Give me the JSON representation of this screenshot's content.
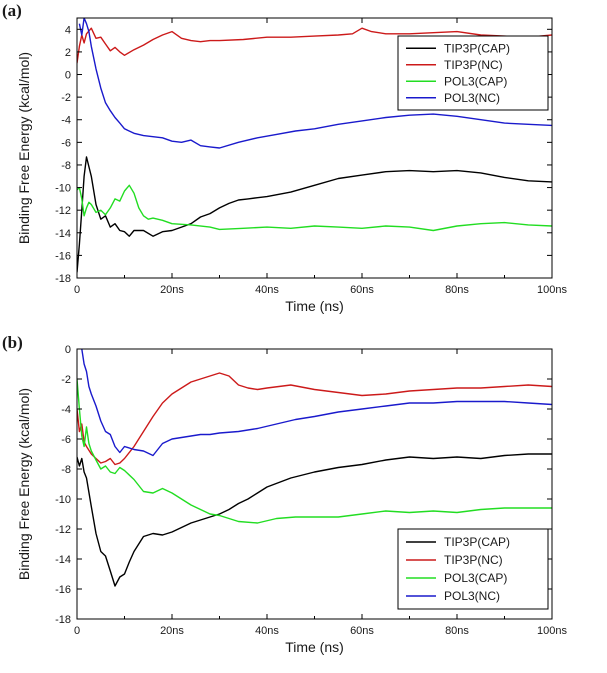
{
  "chart_data": [
    {
      "panel_label": "(a)",
      "type": "line",
      "xlabel": "Time (ns)",
      "ylabel": "Binding Free Energy (kcal/mol)",
      "xlim": [
        0,
        100
      ],
      "ylim": [
        -18,
        5
      ],
      "x_ticks": [
        {
          "value": 0,
          "label": "0"
        },
        {
          "value": 20,
          "label": "20ns"
        },
        {
          "value": 40,
          "label": "40ns"
        },
        {
          "value": 60,
          "label": "60ns"
        },
        {
          "value": 80,
          "label": "80ns"
        },
        {
          "value": 100,
          "label": "100ns"
        }
      ],
      "y_ticks": [
        4,
        2,
        0,
        -2,
        -4,
        -6,
        -8,
        -10,
        -12,
        -14,
        -16,
        -18
      ],
      "legend_position": "top-right",
      "series": [
        {
          "name": "TIP3P(CAP)",
          "color": "#000000",
          "x": [
            0,
            0.5,
            1,
            1.5,
            2,
            3,
            4,
            5,
            6,
            7,
            8,
            9,
            10,
            11,
            12,
            14,
            16,
            18,
            20,
            22,
            24,
            26,
            28,
            30,
            32,
            34,
            36,
            38,
            40,
            45,
            50,
            55,
            60,
            65,
            70,
            75,
            80,
            85,
            90,
            95,
            100
          ],
          "y": [
            -17.5,
            -15,
            -12,
            -9,
            -7.3,
            -9,
            -11.5,
            -12.8,
            -12.5,
            -13.5,
            -13.2,
            -13.8,
            -13.9,
            -14.3,
            -13.8,
            -13.8,
            -14.3,
            -13.9,
            -13.8,
            -13.5,
            -13.2,
            -12.6,
            -12.3,
            -11.8,
            -11.4,
            -11.1,
            -11,
            -10.9,
            -10.8,
            -10.4,
            -9.8,
            -9.2,
            -8.9,
            -8.6,
            -8.5,
            -8.6,
            -8.5,
            -8.7,
            -9.1,
            -9.4,
            -9.5
          ]
        },
        {
          "name": "TIP3P(NC)",
          "color": "#cc1a1a",
          "x": [
            0,
            0.5,
            1,
            1.5,
            2,
            3,
            4,
            5,
            6,
            7,
            8,
            9,
            10,
            12,
            14,
            16,
            18,
            20,
            22,
            24,
            26,
            28,
            30,
            35,
            40,
            45,
            50,
            55,
            58,
            60,
            62,
            65,
            70,
            75,
            80,
            85,
            90,
            95,
            100
          ],
          "y": [
            1,
            2.5,
            3.5,
            2.8,
            3.6,
            4.1,
            3.2,
            3.3,
            2.7,
            2.1,
            2.4,
            2.0,
            1.7,
            2.2,
            2.6,
            3.1,
            3.5,
            3.8,
            3.2,
            3.0,
            2.9,
            3.0,
            3.0,
            3.1,
            3.3,
            3.3,
            3.4,
            3.5,
            3.6,
            4.1,
            3.8,
            3.6,
            3.6,
            3.7,
            3.8,
            3.5,
            3.4,
            3.3,
            3.5
          ]
        },
        {
          "name": "POL3(CAP)",
          "color": "#22dd22",
          "x": [
            0,
            0.5,
            1,
            1.5,
            2,
            2.5,
            3,
            4,
            5,
            6,
            7,
            8,
            9,
            10,
            11,
            12,
            13,
            14,
            15,
            16,
            18,
            20,
            24,
            28,
            30,
            35,
            40,
            45,
            50,
            55,
            60,
            65,
            70,
            75,
            80,
            85,
            90,
            95,
            100
          ],
          "y": [
            -10.2,
            -10,
            -11,
            -12.5,
            -11.8,
            -11.3,
            -11.5,
            -12.2,
            -12,
            -12.4,
            -11.8,
            -11,
            -11.2,
            -10.3,
            -9.8,
            -10.5,
            -11.8,
            -12.5,
            -12.8,
            -12.7,
            -12.9,
            -13.2,
            -13.3,
            -13.5,
            -13.7,
            -13.6,
            -13.5,
            -13.6,
            -13.4,
            -13.5,
            -13.6,
            -13.4,
            -13.5,
            -13.8,
            -13.4,
            -13.2,
            -13.1,
            -13.3,
            -13.4
          ]
        },
        {
          "name": "POL3(NC)",
          "color": "#1a1acc",
          "x": [
            0.5,
            1,
            1.5,
            2,
            2.5,
            3,
            4,
            5,
            6,
            7,
            8,
            9,
            10,
            12,
            14,
            16,
            18,
            20,
            22,
            24,
            26,
            28,
            30,
            34,
            38,
            42,
            46,
            50,
            55,
            60,
            65,
            70,
            75,
            80,
            85,
            90,
            95,
            100
          ],
          "y": [
            4.5,
            3.5,
            5,
            4.5,
            3.8,
            2.5,
            0.5,
            -1.2,
            -2.5,
            -3.2,
            -3.8,
            -4.3,
            -4.8,
            -5.2,
            -5.4,
            -5.5,
            -5.6,
            -5.9,
            -6.0,
            -5.8,
            -6.3,
            -6.4,
            -6.5,
            -6.0,
            -5.6,
            -5.3,
            -5.0,
            -4.8,
            -4.4,
            -4.1,
            -3.8,
            -3.6,
            -3.5,
            -3.7,
            -4.0,
            -4.3,
            -4.4,
            -4.5
          ]
        }
      ]
    },
    {
      "panel_label": "(b)",
      "type": "line",
      "xlabel": "Time (ns)",
      "ylabel": "Binding Free Energy (kcal/mol)",
      "xlim": [
        0,
        100
      ],
      "ylim": [
        -18,
        0
      ],
      "x_ticks": [
        {
          "value": 0,
          "label": "0"
        },
        {
          "value": 20,
          "label": "20ns"
        },
        {
          "value": 40,
          "label": "40ns"
        },
        {
          "value": 60,
          "label": "60ns"
        },
        {
          "value": 80,
          "label": "80ns"
        },
        {
          "value": 100,
          "label": "100ns"
        }
      ],
      "y_ticks": [
        0,
        -2,
        -4,
        -6,
        -8,
        -10,
        -12,
        -14,
        -16,
        -18
      ],
      "legend_position": "bottom-right",
      "series": [
        {
          "name": "TIP3P(CAP)",
          "color": "#000000",
          "x": [
            0,
            0.5,
            1,
            1.5,
            2,
            3,
            4,
            5,
            6,
            7,
            8,
            9,
            10,
            11,
            12,
            14,
            16,
            18,
            20,
            22,
            24,
            26,
            28,
            30,
            32,
            34,
            36,
            38,
            40,
            45,
            50,
            55,
            60,
            65,
            70,
            75,
            80,
            85,
            90,
            95,
            100
          ],
          "y": [
            -7.2,
            -7.8,
            -7.3,
            -8.2,
            -8.6,
            -10.5,
            -12.3,
            -13.5,
            -13.8,
            -14.8,
            -15.8,
            -15.2,
            -15.0,
            -14.2,
            -13.5,
            -12.5,
            -12.3,
            -12.4,
            -12.2,
            -11.9,
            -11.6,
            -11.4,
            -11.2,
            -11.0,
            -10.7,
            -10.3,
            -10.0,
            -9.6,
            -9.2,
            -8.6,
            -8.2,
            -7.9,
            -7.7,
            -7.4,
            -7.2,
            -7.3,
            -7.2,
            -7.3,
            -7.1,
            -7.0,
            -7.0
          ]
        },
        {
          "name": "TIP3P(NC)",
          "color": "#cc1a1a",
          "x": [
            0,
            0.5,
            1,
            1.5,
            2,
            3,
            4,
            5,
            6,
            7,
            8,
            9,
            10,
            12,
            14,
            16,
            18,
            20,
            22,
            24,
            26,
            28,
            30,
            32,
            34,
            36,
            38,
            40,
            45,
            50,
            55,
            60,
            65,
            70,
            75,
            80,
            85,
            90,
            95,
            100
          ],
          "y": [
            -4.0,
            -5.5,
            -5.0,
            -6.2,
            -6.5,
            -7.0,
            -7.3,
            -7.6,
            -7.5,
            -7.3,
            -7.7,
            -7.6,
            -7.3,
            -6.5,
            -5.5,
            -4.5,
            -3.6,
            -3.0,
            -2.6,
            -2.2,
            -2.0,
            -1.8,
            -1.6,
            -1.8,
            -2.4,
            -2.6,
            -2.7,
            -2.6,
            -2.4,
            -2.7,
            -2.9,
            -3.1,
            -3.0,
            -2.8,
            -2.7,
            -2.6,
            -2.6,
            -2.5,
            -2.4,
            -2.5
          ]
        },
        {
          "name": "POL3(CAP)",
          "color": "#22dd22",
          "x": [
            0,
            0.5,
            1,
            1.5,
            2,
            2.5,
            3,
            4,
            5,
            6,
            7,
            8,
            9,
            10,
            12,
            14,
            16,
            18,
            20,
            22,
            24,
            26,
            28,
            30,
            34,
            38,
            42,
            46,
            50,
            55,
            60,
            65,
            70,
            75,
            80,
            85,
            90,
            95,
            100
          ],
          "y": [
            -2.0,
            -4.0,
            -5.8,
            -6.5,
            -5.2,
            -6.3,
            -6.8,
            -7.4,
            -8.0,
            -7.8,
            -8.2,
            -8.3,
            -7.9,
            -8.1,
            -8.7,
            -9.5,
            -9.6,
            -9.3,
            -9.6,
            -10.0,
            -10.4,
            -10.7,
            -11.0,
            -11.1,
            -11.5,
            -11.6,
            -11.3,
            -11.2,
            -11.2,
            -11.2,
            -11.0,
            -10.8,
            -10.9,
            -10.8,
            -10.9,
            -10.7,
            -10.6,
            -10.6,
            -10.6
          ]
        },
        {
          "name": "POL3(NC)",
          "color": "#1a1acc",
          "x": [
            1,
            1.5,
            2,
            2.5,
            3,
            4,
            5,
            6,
            7,
            8,
            9,
            10,
            12,
            14,
            16,
            18,
            20,
            22,
            24,
            26,
            28,
            30,
            34,
            38,
            42,
            46,
            50,
            55,
            60,
            65,
            70,
            75,
            80,
            85,
            90,
            95,
            100
          ],
          "y": [
            0.0,
            -1.0,
            -1.5,
            -2.5,
            -3.0,
            -3.8,
            -4.8,
            -5.5,
            -5.7,
            -6.5,
            -6.9,
            -6.5,
            -6.7,
            -6.8,
            -7.1,
            -6.3,
            -6.0,
            -5.9,
            -5.8,
            -5.7,
            -5.7,
            -5.6,
            -5.5,
            -5.3,
            -5.0,
            -4.7,
            -4.5,
            -4.2,
            -4.0,
            -3.8,
            -3.6,
            -3.6,
            -3.5,
            -3.5,
            -3.5,
            -3.6,
            -3.7
          ]
        }
      ]
    }
  ]
}
